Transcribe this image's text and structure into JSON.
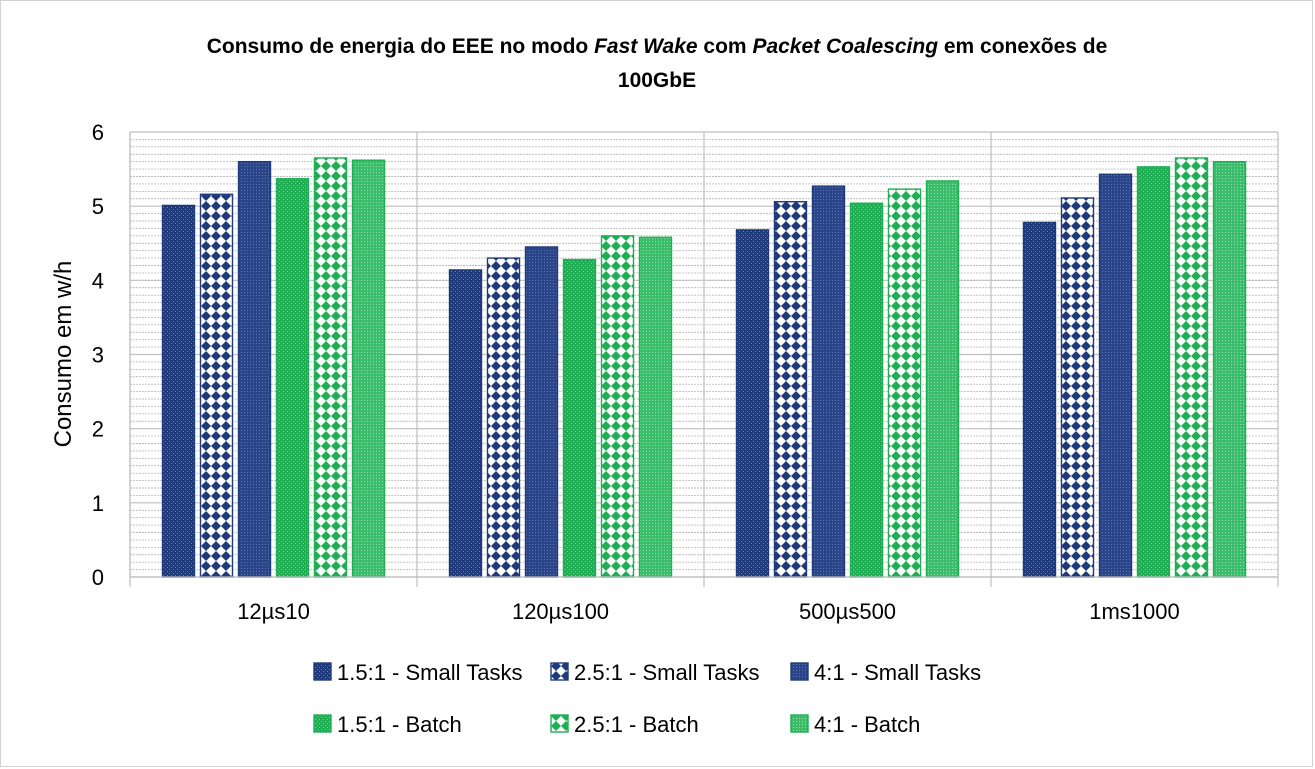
{
  "chart_data": {
    "type": "bar",
    "title": {
      "line1_parts": [
        {
          "text": "Consumo de energia do EEE no modo ",
          "italic": false
        },
        {
          "text": "Fast Wake",
          "italic": true
        },
        {
          "text": " com ",
          "italic": false
        },
        {
          "text": "Packet Coalescing",
          "italic": true
        },
        {
          "text": " em conexões de",
          "italic": false
        }
      ],
      "line2": "100GbE"
    },
    "ylabel": "Consumo em w/h",
    "xlabel": "",
    "ylim": [
      0,
      6
    ],
    "yticks": [
      "0",
      "1",
      "2",
      "3",
      "4",
      "5",
      "6"
    ],
    "grid": true,
    "legend_position": "bottom",
    "categories": [
      "12µs10",
      "120µs100",
      "500µs500",
      "1ms1000"
    ],
    "series": [
      {
        "name": "1.5:1 - Small Tasks",
        "values": [
          5.01,
          4.14,
          4.68,
          4.78
        ],
        "color": "#1f3a7a",
        "pattern": "dots-dark"
      },
      {
        "name": "2.5:1 - Small Tasks",
        "values": [
          5.16,
          4.3,
          5.06,
          5.11
        ],
        "color": "#1f3a7a",
        "pattern": "diamond-dark"
      },
      {
        "name": "4:1 - Small Tasks",
        "values": [
          5.6,
          4.45,
          5.27,
          5.43
        ],
        "color": "#1f3a7a",
        "pattern": "fine-dark"
      },
      {
        "name": "1.5:1 - Batch",
        "values": [
          5.37,
          4.28,
          5.04,
          5.53
        ],
        "color": "#1fae54",
        "pattern": "dots-green"
      },
      {
        "name": "2.5:1 - Batch",
        "values": [
          5.65,
          4.6,
          5.23,
          5.65
        ],
        "color": "#1fae54",
        "pattern": "diamond-green"
      },
      {
        "name": "4:1 - Batch",
        "values": [
          5.62,
          4.58,
          5.34,
          5.6
        ],
        "color": "#1fae54",
        "pattern": "fine-green"
      }
    ]
  }
}
